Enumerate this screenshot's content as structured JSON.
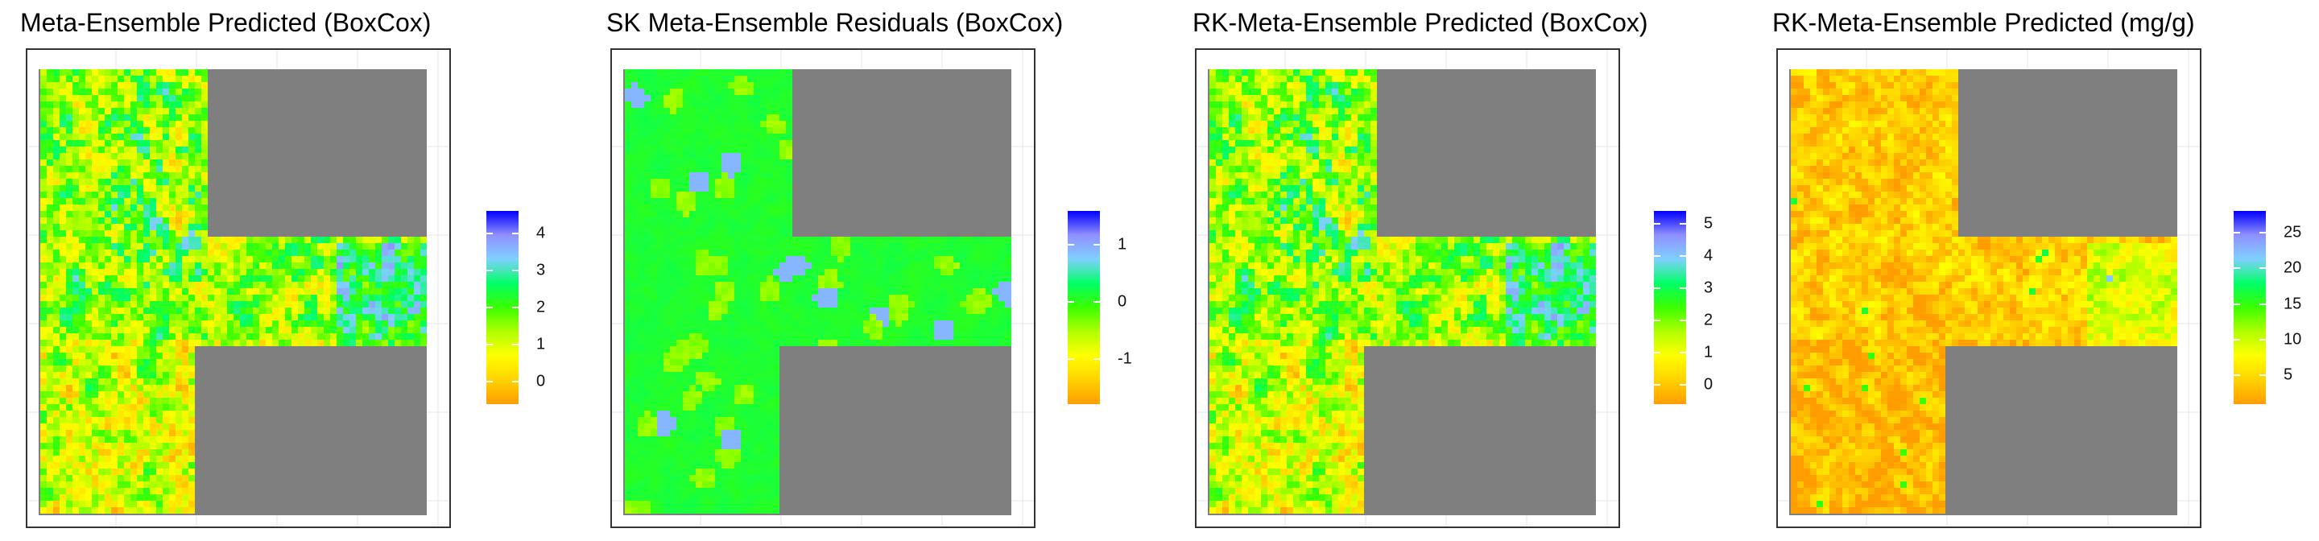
{
  "colors": {
    "panel_bg": "#ffffff",
    "mask_gray": "#7f7f7f",
    "frame": "#333333",
    "grid": "#e6e6e6",
    "scale": [
      "#ff9c00",
      "#ffd200",
      "#ffff00",
      "#b0ff00",
      "#3cff00",
      "#00ff66",
      "#80d0ff",
      "#9090ff",
      "#0000ff"
    ]
  },
  "panels": [
    {
      "title": "Meta-Ensemble Predicted (BoxCox)",
      "legend_ticks": [
        "4",
        "3",
        "2",
        "1",
        "0"
      ],
      "legend_range": [
        -0.6,
        4.6
      ],
      "tick_values": [
        4,
        3,
        2,
        1,
        0
      ],
      "style": "pred"
    },
    {
      "title": "SK Meta-Ensemble Residuals (BoxCox)",
      "legend_ticks": [
        "1",
        "0",
        "-1"
      ],
      "legend_range": [
        -1.8,
        1.6
      ],
      "tick_values": [
        1,
        0,
        -1
      ],
      "style": "resid"
    },
    {
      "title": "RK-Meta-Ensemble Predicted (BoxCox)",
      "legend_ticks": [
        "5",
        "4",
        "3",
        "2",
        "1",
        "0"
      ],
      "legend_range": [
        -0.6,
        5.4
      ],
      "tick_values": [
        5,
        4,
        3,
        2,
        1,
        0
      ],
      "style": "pred"
    },
    {
      "title": "RK-Meta-Ensemble Predicted (mg/g)",
      "legend_ticks": [
        "25",
        "20",
        "15",
        "10",
        "5"
      ],
      "legend_range": [
        1,
        28
      ],
      "tick_values": [
        25,
        20,
        15,
        10,
        5
      ],
      "style": "mgg"
    }
  ]
}
